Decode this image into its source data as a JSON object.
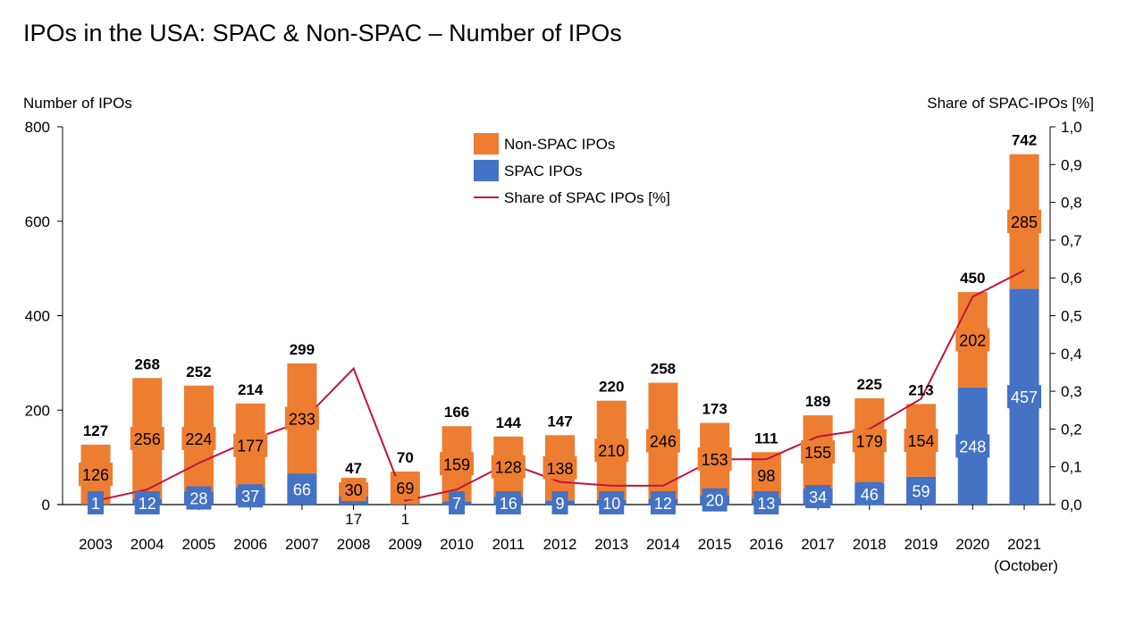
{
  "chart_data": {
    "type": "bar",
    "stacked": true,
    "title": "IPOs in the USA: SPAC & Non-SPAC – Number of IPOs",
    "ylabel": "Number of IPOs",
    "y2label": "Share of SPAC-IPOs [%]",
    "ylim": [
      0,
      800
    ],
    "yticks": [
      0,
      200,
      400,
      600,
      800
    ],
    "y2lim": [
      0,
      1.0
    ],
    "y2ticks": [
      "0,0",
      "0,1",
      "0,2",
      "0,3",
      "0,4",
      "0,5",
      "0,6",
      "0,7",
      "0,8",
      "0,9",
      "1,0"
    ],
    "categories": [
      "2003",
      "2004",
      "2005",
      "2006",
      "2007",
      "2008",
      "2009",
      "2010",
      "2011",
      "2012",
      "2013",
      "2014",
      "2015",
      "2016",
      "2017",
      "2018",
      "2019",
      "2020",
      "2021"
    ],
    "category_sublabels": {
      "2021": "(October)"
    },
    "totals": [
      127,
      268,
      252,
      214,
      299,
      47,
      70,
      166,
      144,
      147,
      220,
      258,
      173,
      111,
      189,
      225,
      213,
      450,
      742
    ],
    "series": [
      {
        "name": "SPAC IPOs",
        "color": "#4472C4",
        "values": [
          1,
          12,
          28,
          37,
          66,
          17,
          1,
          7,
          16,
          9,
          10,
          12,
          20,
          13,
          34,
          46,
          59,
          248,
          457
        ]
      },
      {
        "name": "Non-SPAC IPOs",
        "color": "#ED7D31",
        "values": [
          126,
          256,
          224,
          177,
          233,
          30,
          69,
          159,
          128,
          138,
          210,
          246,
          153,
          98,
          155,
          179,
          154,
          202,
          285
        ]
      },
      {
        "name": "Share of SPAC IPOs [%]",
        "type": "line",
        "axis": "right",
        "color": "#C0143C",
        "values": [
          0.01,
          0.04,
          0.11,
          0.17,
          0.22,
          0.36,
          0.01,
          0.04,
          0.11,
          0.06,
          0.05,
          0.05,
          0.12,
          0.12,
          0.18,
          0.2,
          0.28,
          0.55,
          0.62
        ]
      }
    ],
    "legend": [
      "Non-SPAC IPOs",
      "SPAC IPOs",
      "Share of SPAC IPOs [%]"
    ],
    "legend_position": "top-center",
    "grid": false
  }
}
